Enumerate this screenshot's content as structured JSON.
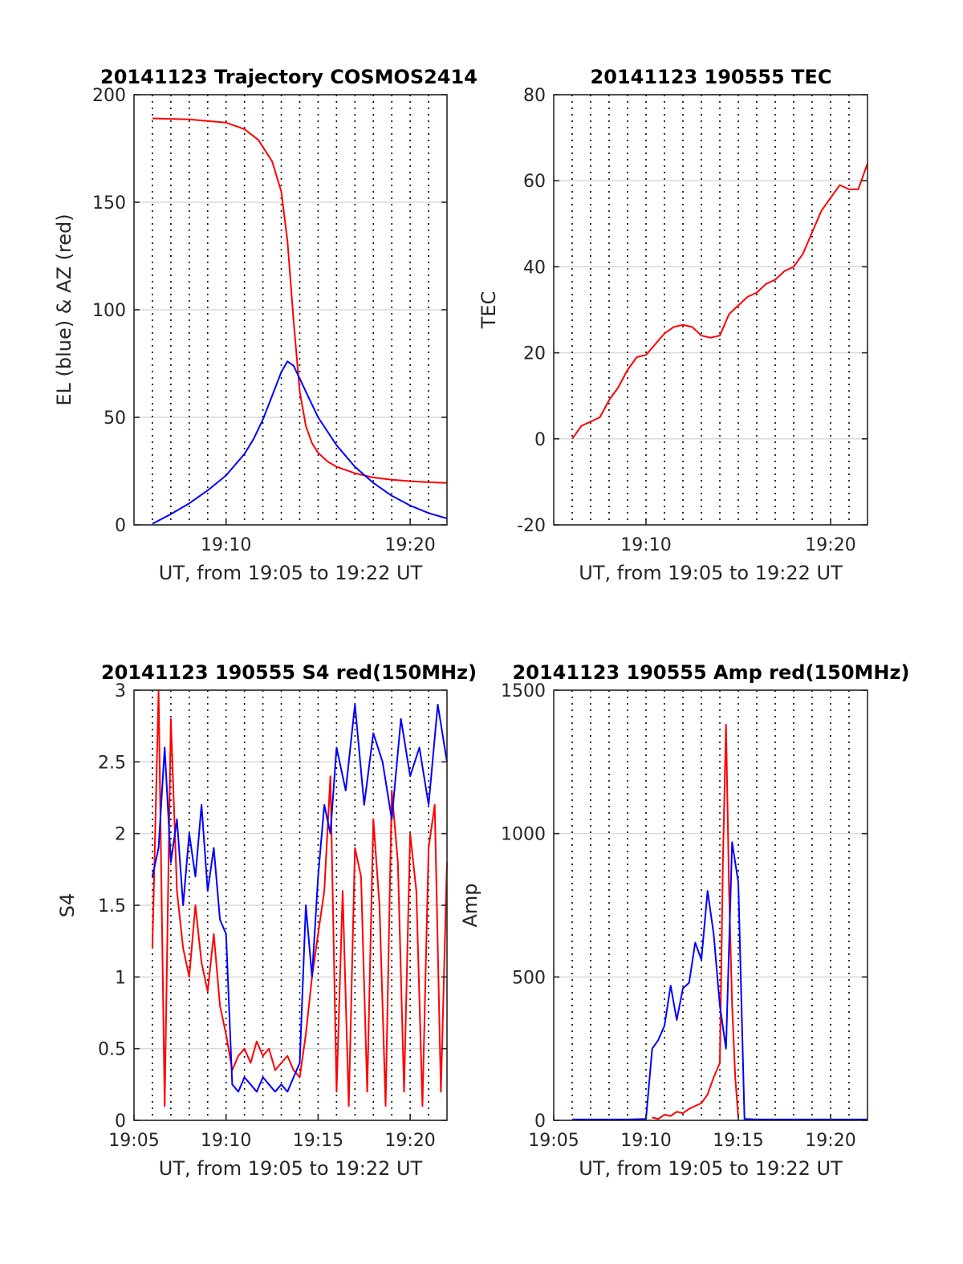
{
  "figure": {
    "colors": {
      "red": "#ff0000",
      "blue": "#0000ff",
      "grid": "#000000",
      "hgrid": "#d9d9d9"
    }
  },
  "chart_data": [
    {
      "id": "trajectory",
      "type": "line",
      "title": "20141123 Trajectory COSMOS2414",
      "xlabel": "UT, from 19:05 to 19:22 UT",
      "ylabel": "EL (blue) & AZ (red)",
      "xlim": [
        "19:05",
        "19:22"
      ],
      "ylim": [
        0,
        200
      ],
      "yticks": [
        "0",
        "50",
        "100",
        "150",
        "200"
      ],
      "xtick_values": [
        "19:10",
        "19:20"
      ],
      "xticks": [
        "19:10",
        "19:20"
      ],
      "grid": true,
      "series": [
        {
          "color": "#ff0000",
          "x": [
            "19:06:00",
            "19:08:00",
            "19:10:00",
            "19:11:00",
            "19:11:45",
            "19:12:30",
            "19:13:00",
            "19:13:20",
            "19:13:40",
            "19:14:00",
            "19:14:20",
            "19:14:40",
            "19:15:00",
            "19:15:30",
            "19:16:00",
            "19:17:00",
            "19:18:00",
            "19:19:00",
            "19:20:00",
            "19:21:00",
            "19:22:00"
          ],
          "values": [
            189,
            188.5,
            187,
            184,
            179,
            169,
            155,
            132,
            95,
            62,
            46,
            38,
            33.5,
            29.5,
            27,
            24,
            22,
            21,
            20.3,
            19.8,
            19.5
          ]
        },
        {
          "color": "#0000ff",
          "x": [
            "19:06:00",
            "19:07:00",
            "19:08:00",
            "19:09:00",
            "19:10:00",
            "19:11:00",
            "19:11:30",
            "19:12:00",
            "19:12:30",
            "19:13:00",
            "19:13:20",
            "19:13:40",
            "19:14:00",
            "19:14:30",
            "19:15:00",
            "19:16:00",
            "19:17:00",
            "19:18:00",
            "19:19:00",
            "19:20:00",
            "19:21:00",
            "19:22:00"
          ],
          "values": [
            0.5,
            5,
            10,
            16,
            23,
            33,
            40,
            49,
            60,
            71,
            76,
            74,
            68,
            59,
            50,
            37,
            27,
            19.5,
            13.5,
            9,
            5.5,
            3
          ]
        }
      ]
    },
    {
      "id": "tec",
      "type": "line",
      "title": "20141123 190555 TEC",
      "xlabel": "UT, from 19:05 to 19:22 UT",
      "ylabel": "TEC",
      "xlim": [
        "19:05",
        "19:22"
      ],
      "ylim": [
        -20,
        80
      ],
      "yticks": [
        "-20",
        "0",
        "20",
        "40",
        "60",
        "80"
      ],
      "xtick_values": [
        "19:10",
        "19:20"
      ],
      "xticks": [
        "19:10",
        "19:20"
      ],
      "grid": true,
      "series": [
        {
          "color": "#ff0000",
          "x": [
            "19:06:00",
            "19:06:30",
            "19:07:00",
            "19:07:30",
            "19:08:00",
            "19:08:30",
            "19:09:00",
            "19:09:30",
            "19:10:00",
            "19:10:30",
            "19:11:00",
            "19:11:30",
            "19:12:00",
            "19:12:30",
            "19:13:00",
            "19:13:30",
            "19:14:00",
            "19:14:30",
            "19:15:00",
            "19:15:30",
            "19:16:00",
            "19:16:30",
            "19:17:00",
            "19:17:30",
            "19:18:00",
            "19:18:30",
            "19:19:00",
            "19:19:30",
            "19:20:00",
            "19:20:30",
            "19:21:00",
            "19:21:30",
            "19:22:00"
          ],
          "values": [
            0,
            3,
            4,
            5,
            9,
            12,
            16,
            19,
            19.5,
            22,
            24.5,
            26,
            26.5,
            26,
            24,
            23.5,
            24,
            29,
            31,
            33,
            34,
            36,
            37,
            39,
            40,
            43,
            48,
            53,
            56,
            59,
            58,
            58,
            64
          ]
        }
      ]
    },
    {
      "id": "s4",
      "type": "line",
      "title": "20141123 190555 S4 red(150MHz)",
      "xlabel": "UT, from 19:05 to 19:22 UT",
      "ylabel": "S4",
      "xlim": [
        "19:05",
        "19:22"
      ],
      "ylim": [
        0,
        3
      ],
      "yticks": [
        "0",
        "0.5",
        "1",
        "1.5",
        "2",
        "2.5",
        "3"
      ],
      "xtick_values": [
        "19:05",
        "19:10",
        "19:15",
        "19:20"
      ],
      "xticks": [
        "19:05",
        "19:10",
        "19:15",
        "19:20"
      ],
      "grid": true,
      "series": [
        {
          "color": "#ff0000",
          "x": [
            "19:06:00",
            "19:06:20",
            "19:06:40",
            "19:07:00",
            "19:07:20",
            "19:07:40",
            "19:08:00",
            "19:08:20",
            "19:08:40",
            "19:09:00",
            "19:09:20",
            "19:09:40",
            "19:10:00",
            "19:10:20",
            "19:10:40",
            "19:11:00",
            "19:11:20",
            "19:11:40",
            "19:12:00",
            "19:12:20",
            "19:12:40",
            "19:13:00",
            "19:13:20",
            "19:13:40",
            "19:14:00",
            "19:14:20",
            "19:14:40",
            "19:15:00",
            "19:15:20",
            "19:15:40",
            "19:16:00",
            "19:16:20",
            "19:16:40",
            "19:17:00",
            "19:17:20",
            "19:17:40",
            "19:18:00",
            "19:18:20",
            "19:18:40",
            "19:19:00",
            "19:19:20",
            "19:19:40",
            "19:20:00",
            "19:20:20",
            "19:20:40",
            "19:21:00",
            "19:21:20",
            "19:21:40",
            "19:22:00"
          ],
          "values": [
            1.2,
            3.0,
            0.1,
            2.8,
            1.6,
            1.2,
            1.0,
            1.5,
            1.1,
            0.9,
            1.3,
            0.8,
            0.6,
            0.35,
            0.45,
            0.5,
            0.4,
            0.55,
            0.45,
            0.5,
            0.35,
            0.4,
            0.45,
            0.35,
            0.3,
            0.6,
            1.0,
            1.3,
            1.6,
            2.4,
            0.2,
            1.6,
            0.1,
            1.9,
            1.7,
            0.2,
            2.1,
            1.5,
            0.1,
            2.3,
            1.8,
            0.2,
            2.0,
            1.6,
            0.1,
            1.9,
            2.2,
            0.2,
            1.8
          ]
        },
        {
          "color": "#0000ff",
          "x": [
            "19:06:00",
            "19:06:20",
            "19:06:40",
            "19:07:00",
            "19:07:20",
            "19:07:40",
            "19:08:00",
            "19:08:20",
            "19:08:40",
            "19:09:00",
            "19:09:20",
            "19:09:40",
            "19:10:00",
            "19:10:20",
            "19:10:40",
            "19:11:00",
            "19:11:20",
            "19:11:40",
            "19:12:00",
            "19:12:20",
            "19:12:40",
            "19:13:00",
            "19:13:20",
            "19:13:40",
            "19:14:00",
            "19:14:20",
            "19:14:40",
            "19:15:00",
            "19:15:20",
            "19:15:40",
            "19:16:00",
            "19:16:30",
            "19:17:00",
            "19:17:30",
            "19:18:00",
            "19:18:30",
            "19:19:00",
            "19:19:30",
            "19:20:00",
            "19:20:30",
            "19:21:00",
            "19:21:30",
            "19:22:00"
          ],
          "values": [
            1.7,
            1.9,
            2.6,
            1.8,
            2.1,
            1.5,
            2.0,
            1.7,
            2.2,
            1.6,
            1.9,
            1.4,
            1.3,
            0.25,
            0.2,
            0.3,
            0.25,
            0.2,
            0.3,
            0.25,
            0.2,
            0.25,
            0.2,
            0.3,
            0.4,
            1.5,
            1.0,
            1.7,
            2.2,
            2.0,
            2.6,
            2.3,
            2.9,
            2.2,
            2.7,
            2.5,
            2.1,
            2.8,
            2.4,
            2.6,
            2.2,
            2.9,
            2.5
          ]
        }
      ]
    },
    {
      "id": "amp",
      "type": "line",
      "title": "20141123 190555 Amp red(150MHz)",
      "xlabel": "UT, from 19:05 to 19:22 UT",
      "ylabel": "Amp",
      "xlim": [
        "19:05",
        "19:22"
      ],
      "ylim": [
        0,
        1500
      ],
      "yticks": [
        "0",
        "500",
        "1000",
        "1500"
      ],
      "xtick_values": [
        "19:05",
        "19:10",
        "19:15",
        "19:20"
      ],
      "xticks": [
        "19:05",
        "19:10",
        "19:15",
        "19:20"
      ],
      "grid": true,
      "series": [
        {
          "color": "#ff0000",
          "x": [
            "19:10:20",
            "19:10:40",
            "19:11:00",
            "19:11:20",
            "19:11:40",
            "19:12:00",
            "19:12:20",
            "19:12:40",
            "19:13:00",
            "19:13:20",
            "19:13:40",
            "19:14:00",
            "19:14:10",
            "19:14:20",
            "19:14:30",
            "19:14:40",
            "19:14:50",
            "19:15:00"
          ],
          "values": [
            10,
            5,
            20,
            15,
            30,
            25,
            40,
            50,
            60,
            90,
            150,
            200,
            900,
            1380,
            800,
            400,
            150,
            10
          ]
        },
        {
          "color": "#0000ff",
          "x": [
            "19:06:00",
            "19:07:00",
            "19:08:00",
            "19:09:00",
            "19:10:00",
            "19:10:20",
            "19:10:40",
            "19:11:00",
            "19:11:20",
            "19:11:40",
            "19:12:00",
            "19:12:20",
            "19:12:40",
            "19:13:00",
            "19:13:20",
            "19:13:40",
            "19:14:00",
            "19:14:20",
            "19:14:40",
            "19:15:00",
            "19:15:20",
            "19:16:00",
            "19:17:00",
            "19:18:00",
            "19:19:00",
            "19:20:00",
            "19:21:00",
            "19:22:00"
          ],
          "values": [
            3,
            3,
            3,
            3,
            5,
            250,
            280,
            330,
            470,
            350,
            460,
            480,
            620,
            560,
            800,
            650,
            400,
            250,
            970,
            830,
            5,
            3,
            3,
            3,
            3,
            3,
            3,
            3
          ]
        }
      ]
    }
  ]
}
